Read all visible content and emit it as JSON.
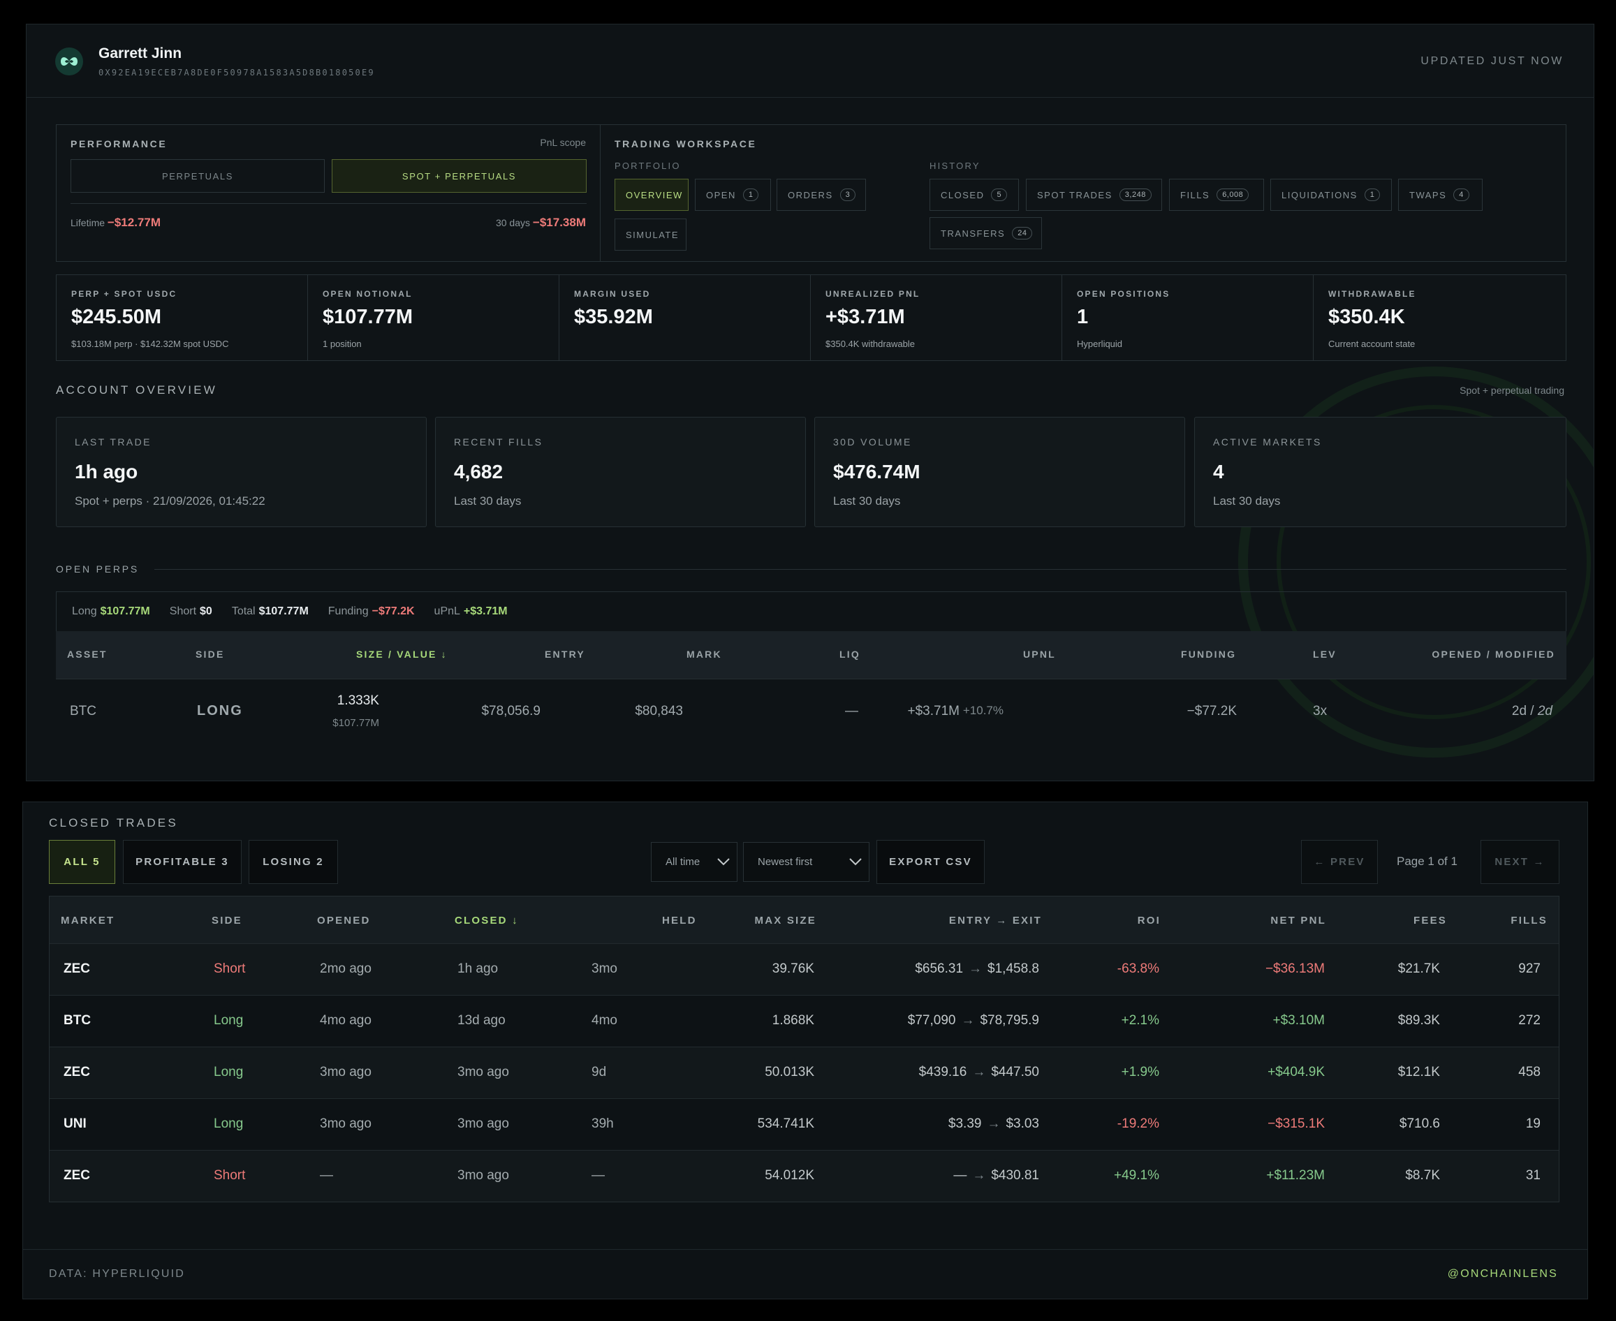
{
  "user": {
    "name": "Garrett Jinn",
    "address": "0X92EA19ECEB7A8DE0F50978A1583A5D8B018050E9",
    "updated": "UPDATED JUST NOW"
  },
  "performance": {
    "title": "PERFORMANCE",
    "scope": "PnL scope",
    "tabs": [
      "PERPETUALS",
      "SPOT + PERPETUALS"
    ],
    "active_tab": 1,
    "lifetime_label": "Lifetime",
    "lifetime_value": "−$12.77M",
    "d30_label": "30 days",
    "d30_value": "−$17.38M"
  },
  "workspace": {
    "title": "TRADING WORKSPACE",
    "portfolio_label": "PORTFOLIO",
    "history_label": "HISTORY",
    "portfolio": [
      {
        "label": "OVERVIEW",
        "count": ""
      },
      {
        "label": "OPEN",
        "count": "1"
      },
      {
        "label": "ORDERS",
        "count": "3"
      },
      {
        "label": "SIMULATE",
        "count": ""
      }
    ],
    "history": [
      {
        "label": "CLOSED",
        "count": "5"
      },
      {
        "label": "SPOT TRADES",
        "count": "3,248"
      },
      {
        "label": "FILLS",
        "count": "6,008"
      },
      {
        "label": "LIQUIDATIONS",
        "count": "1"
      },
      {
        "label": "TWAPS",
        "count": "4"
      },
      {
        "label": "TRANSFERS",
        "count": "24"
      }
    ]
  },
  "stats": [
    {
      "title": "PERP + SPOT USDC",
      "value": "$245.50M",
      "sub": "$103.18M perp · $142.32M spot USDC"
    },
    {
      "title": "OPEN NOTIONAL",
      "value": "$107.77M",
      "sub": "1 position"
    },
    {
      "title": "MARGIN USED",
      "value": "$35.92M",
      "sub": ""
    },
    {
      "title": "UNREALIZED PNL",
      "value": "+$3.71M",
      "sub": "$350.4K withdrawable"
    },
    {
      "title": "OPEN POSITIONS",
      "value": "1",
      "sub": "Hyperliquid"
    },
    {
      "title": "WITHDRAWABLE",
      "value": "$350.4K",
      "sub": "Current account state"
    }
  ],
  "overview": {
    "title": "ACCOUNT OVERVIEW",
    "note": "Spot + perpetual trading",
    "cards": [
      {
        "title": "LAST TRADE",
        "value": "1h ago",
        "sub": "Spot + perps · 21/09/2026, 01:45:22"
      },
      {
        "title": "RECENT FILLS",
        "value": "4,682",
        "sub": "Last 30 days"
      },
      {
        "title": "30D VOLUME",
        "value": "$476.74M",
        "sub": "Last 30 days"
      },
      {
        "title": "ACTIVE MARKETS",
        "value": "4",
        "sub": "Last 30 days"
      }
    ]
  },
  "open_perps": {
    "title": "OPEN PERPS",
    "summary": [
      {
        "k": "Long",
        "v": "$107.77M"
      },
      {
        "k": "Short",
        "v": "$0"
      },
      {
        "k": "Total",
        "v": "$107.77M"
      },
      {
        "k": "Funding",
        "v": "−$77.2K"
      },
      {
        "k": "uPnL",
        "v": "+$3.71M"
      }
    ],
    "columns": [
      "ASSET",
      "SIDE",
      "SIZE / VALUE ↓",
      "ENTRY",
      "MARK",
      "LIQ",
      "UPNL",
      "FUNDING",
      "LEV",
      "OPENED / MODIFIED"
    ],
    "row": {
      "asset": "BTC",
      "side": "LONG",
      "size": "1.333K",
      "value": "$107.77M",
      "entry": "$78,056.9",
      "mark": "$80,843",
      "liq": "—",
      "upnl": "+$3.71M",
      "upnl_pct": "+10.7%",
      "funding": "−$77.2K",
      "lev": "3x",
      "opened": "2d / ",
      "modified": "2d"
    }
  },
  "closed": {
    "title": "CLOSED TRADES",
    "filters": [
      "ALL 5",
      "PROFITABLE 3",
      "LOSING 2"
    ],
    "range": "All time",
    "sort": "Newest first",
    "export": "EXPORT CSV",
    "prev": "← PREV",
    "page": "Page 1 of 1",
    "next": "NEXT →",
    "columns": [
      "MARKET",
      "SIDE",
      "OPENED",
      "CLOSED ↓",
      "HELD",
      "MAX SIZE",
      "ENTRY → EXIT",
      "ROI",
      "NET PNL",
      "FEES",
      "FILLS"
    ],
    "rows": [
      {
        "market": "ZEC",
        "side": "Short",
        "opened": "2mo ago",
        "closed": "1h ago",
        "held": "3mo",
        "max": "39.76K",
        "entry": "$656.31",
        "exit": "$1,458.8",
        "roi": "-63.8%",
        "pnl": "−$36.13M",
        "fees": "$21.7K",
        "fills": "927"
      },
      {
        "market": "BTC",
        "side": "Long",
        "opened": "4mo ago",
        "closed": "13d ago",
        "held": "4mo",
        "max": "1.868K",
        "entry": "$77,090",
        "exit": "$78,795.9",
        "roi": "+2.1%",
        "pnl": "+$3.10M",
        "fees": "$89.3K",
        "fills": "272"
      },
      {
        "market": "ZEC",
        "side": "Long",
        "opened": "3mo ago",
        "closed": "3mo ago",
        "held": "9d",
        "max": "50.013K",
        "entry": "$439.16",
        "exit": "$447.50",
        "roi": "+1.9%",
        "pnl": "+$404.9K",
        "fees": "$12.1K",
        "fills": "458"
      },
      {
        "market": "UNI",
        "side": "Long",
        "opened": "3mo ago",
        "closed": "3mo ago",
        "held": "39h",
        "max": "534.741K",
        "entry": "$3.39",
        "exit": "$3.03",
        "roi": "-19.2%",
        "pnl": "−$315.1K",
        "fees": "$710.6",
        "fills": "19"
      },
      {
        "market": "ZEC",
        "side": "Short",
        "opened": "—",
        "closed": "3mo ago",
        "held": "—",
        "max": "54.012K",
        "entry": "—",
        "exit": "$430.81",
        "roi": "+49.1%",
        "pnl": "+$11.23M",
        "fees": "$8.7K",
        "fills": "31"
      }
    ]
  },
  "footer": {
    "source": "DATA: HYPERLIQUID",
    "handle": "@ONCHAINLENS"
  },
  "colors": {
    "accent": "#a7d97a",
    "negative": "#ee7b79",
    "positive": "#86c98c",
    "background": "#0e1316"
  }
}
